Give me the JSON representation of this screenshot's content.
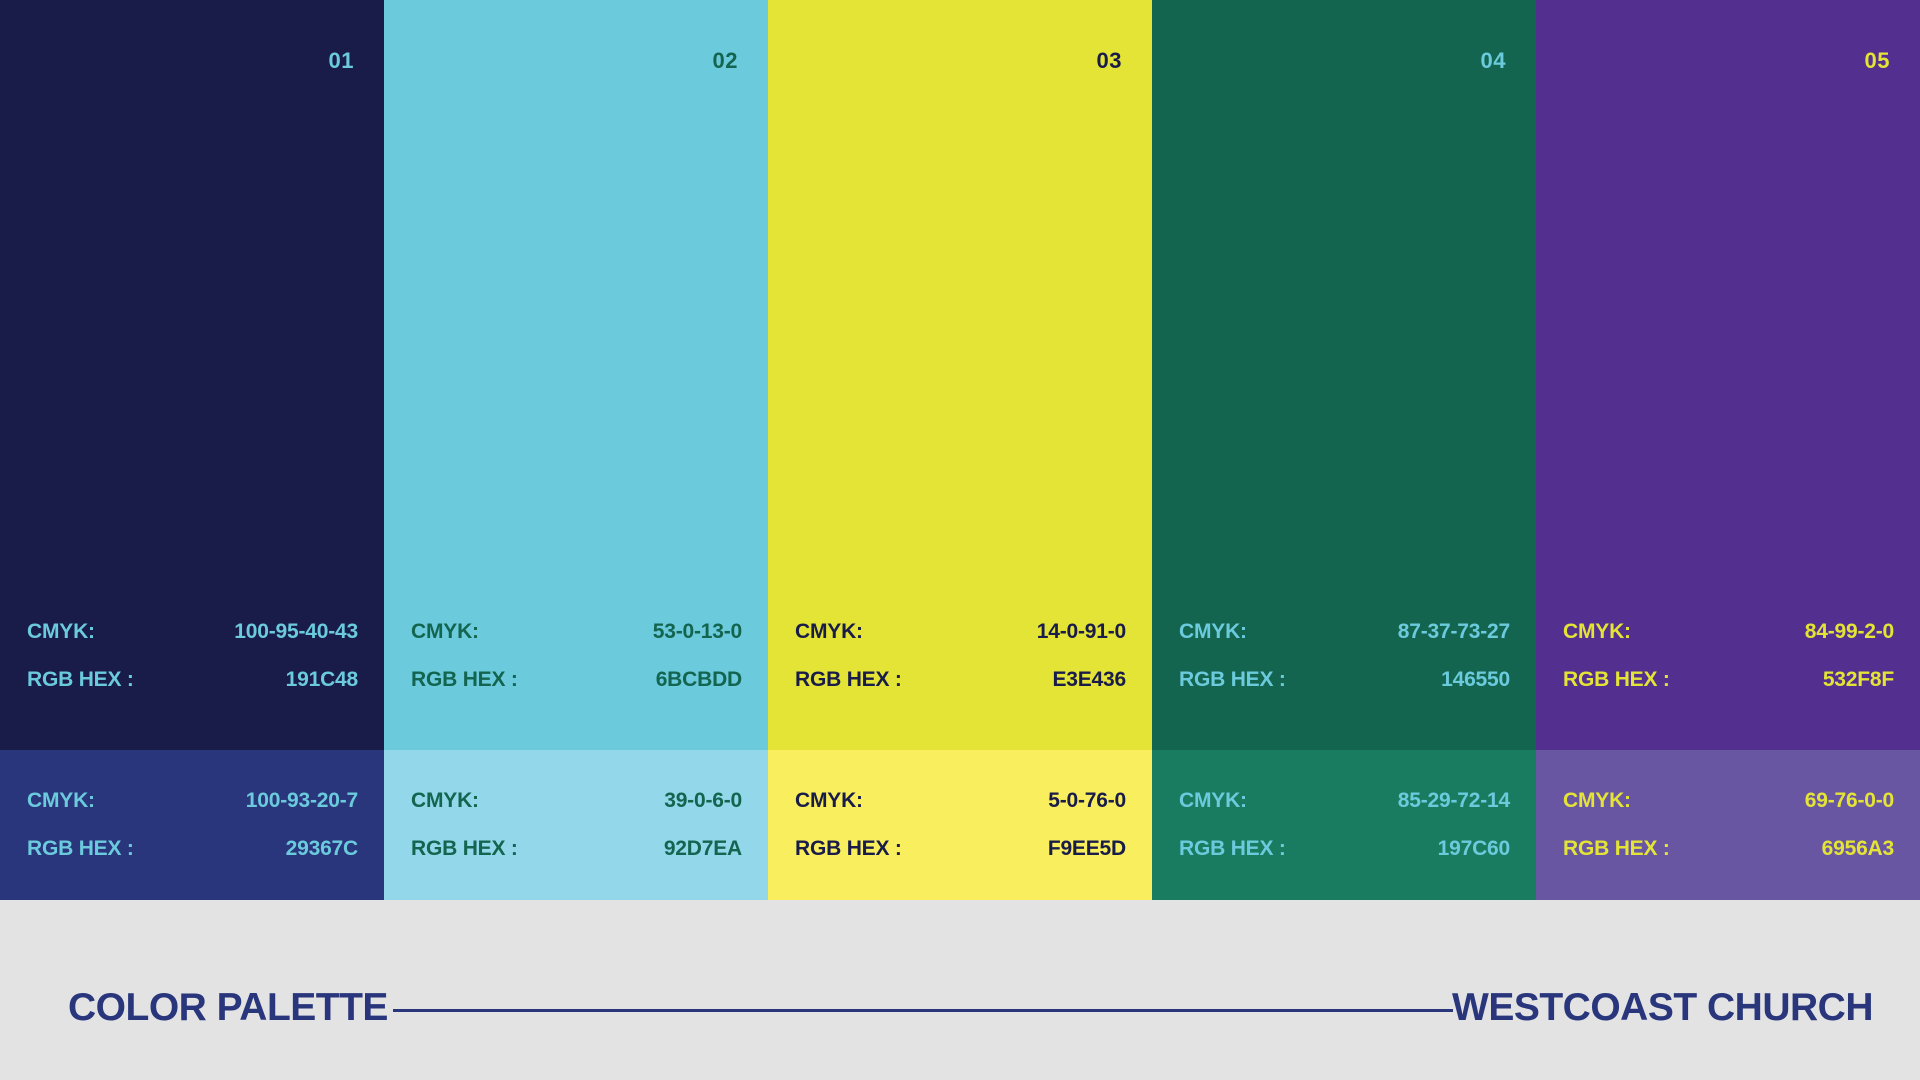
{
  "palette": [
    {
      "number": "01",
      "primary": {
        "bg": "#191C48",
        "text": "#6BCBDD",
        "cmyk_label": "CMYK:",
        "cmyk": "100-95-40-43",
        "hex_label": "RGB HEX :",
        "hex": "191C48"
      },
      "tint": {
        "bg": "#29367C",
        "text": "#6BCBDD",
        "cmyk_label": "CMYK:",
        "cmyk": "100-93-20-7",
        "hex_label": "RGB HEX :",
        "hex": "29367C"
      }
    },
    {
      "number": "02",
      "primary": {
        "bg": "#6BCBDD",
        "text": "#146550",
        "cmyk_label": "CMYK:",
        "cmyk": "53-0-13-0",
        "hex_label": "RGB HEX :",
        "hex": "6BCBDD"
      },
      "tint": {
        "bg": "#92D7EA",
        "text": "#146550",
        "cmyk_label": "CMYK:",
        "cmyk": "39-0-6-0",
        "hex_label": "RGB HEX :",
        "hex": "92D7EA"
      }
    },
    {
      "number": "03",
      "primary": {
        "bg": "#E3E436",
        "text": "#191C48",
        "cmyk_label": "CMYK:",
        "cmyk": "14-0-91-0",
        "hex_label": "RGB HEX :",
        "hex": "E3E436"
      },
      "tint": {
        "bg": "#F9EE5D",
        "text": "#191C48",
        "cmyk_label": "CMYK:",
        "cmyk": "5-0-76-0",
        "hex_label": "RGB HEX :",
        "hex": "F9EE5D"
      }
    },
    {
      "number": "04",
      "primary": {
        "bg": "#146550",
        "text": "#6BCBDD",
        "cmyk_label": "CMYK:",
        "cmyk": "87-37-73-27",
        "hex_label": "RGB HEX :",
        "hex": "146550"
      },
      "tint": {
        "bg": "#197C60",
        "text": "#6BCBDD",
        "cmyk_label": "CMYK:",
        "cmyk": "85-29-72-14",
        "hex_label": "RGB HEX :",
        "hex": "197C60"
      }
    },
    {
      "number": "05",
      "primary": {
        "bg": "#532F8F",
        "text": "#E3E436",
        "cmyk_label": "CMYK:",
        "cmyk": "84-99-2-0",
        "hex_label": "RGB HEX :",
        "hex": "532F8F"
      },
      "tint": {
        "bg": "#6956A3",
        "text": "#E3E436",
        "cmyk_label": "CMYK:",
        "cmyk": "69-76-0-0",
        "hex_label": "RGB HEX :",
        "hex": "6956A3"
      }
    }
  ],
  "footer": {
    "title": "COLOR PALETTE",
    "brand": "WESTCOAST CHURCH",
    "color": "#29367C"
  }
}
